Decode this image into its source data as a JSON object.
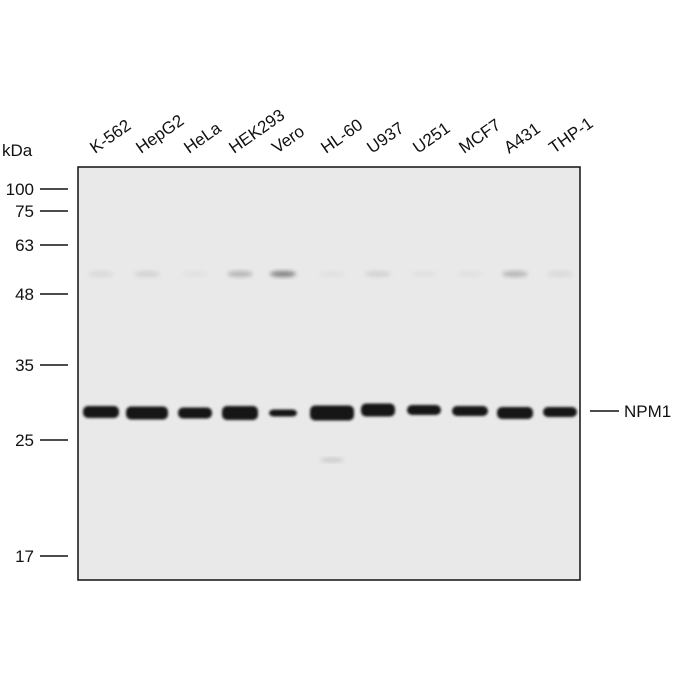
{
  "unit_label": "kDa",
  "lanes": [
    "K-562",
    "HepG2",
    "HeLa",
    "HEK293",
    "Vero",
    "HL-60",
    "U937",
    "U251",
    "MCF7",
    "A431",
    "THP-1"
  ],
  "markers": [
    "100",
    "75",
    "63",
    "48",
    "35",
    "25",
    "17"
  ],
  "band_label": "NPM1"
}
